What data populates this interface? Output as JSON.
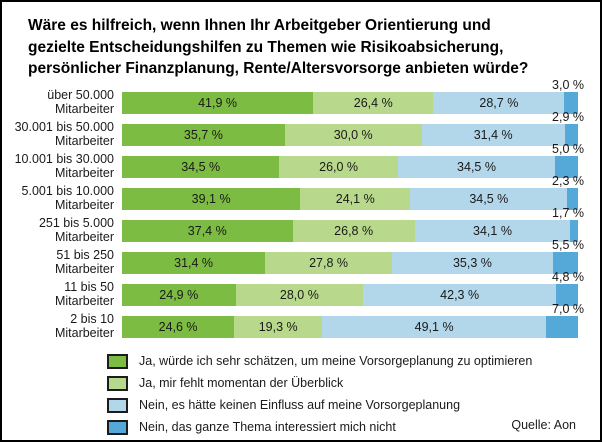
{
  "page": {
    "source": "Quelle: Aon"
  },
  "chart_data": {
    "type": "bar",
    "subtype": "horizontal-stacked-100-percent",
    "title_lines": [
      "Wäre es hilfreich, wenn Ihnen Ihr Arbeitgeber Orientierung und",
      "gezielte Entscheidungshilfen zu Themen wie Risikoabsicherung,",
      "persönlicher Finanzplanung, Rente/Altersvorsorge anbieten würde?"
    ],
    "categories": [
      "über 50.000",
      "30.001 bis 50.000",
      "10.001 bis 30.000",
      "5.001 bis 10.000",
      "251 bis 5.000",
      "51 bis 250",
      "11 bis 50",
      "2 bis 10"
    ],
    "category_suffix": "Mitarbeiter",
    "series": [
      {
        "name": "Ja, würde ich sehr schätzen, um meine Vorsorgeplanung zu optimieren",
        "color": "#7dbc42",
        "values": [
          41.9,
          35.7,
          34.5,
          39.1,
          37.4,
          31.4,
          24.9,
          24.6
        ]
      },
      {
        "name": "Ja, mir fehlt momentan der Überblick",
        "color": "#b8d98c",
        "values": [
          26.4,
          30.0,
          26.0,
          24.1,
          26.8,
          27.8,
          28.0,
          19.3
        ]
      },
      {
        "name": "Nein, es hätte keinen Einfluss auf meine Vorsorgeplanung",
        "color": "#b3d7ea",
        "values": [
          28.7,
          31.4,
          34.5,
          34.5,
          34.1,
          35.3,
          42.3,
          49.1
        ]
      },
      {
        "name": "Nein, das ganze Thema interessiert mich nicht",
        "color": "#54a9d8",
        "values": [
          3.0,
          2.9,
          5.0,
          2.3,
          1.7,
          5.5,
          4.8,
          7.0
        ]
      }
    ],
    "value_suffix": " %",
    "decimal_separator": ",",
    "xlim": [
      0,
      100
    ],
    "grid": false,
    "legend_position": "bottom-left"
  }
}
